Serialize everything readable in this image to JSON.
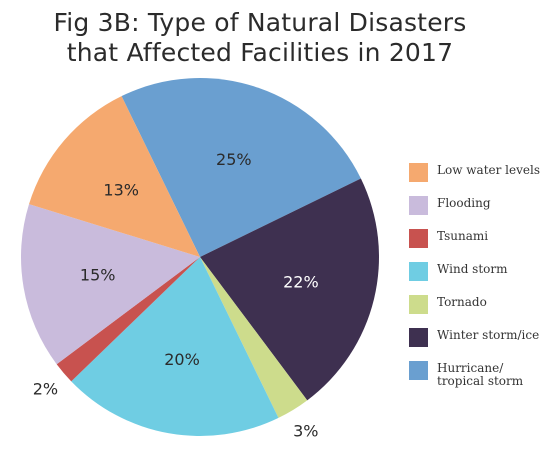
{
  "title_line1": "Fig 3B: Type of Natural Disasters",
  "title_line2": "that Affected Facilities in 2017",
  "chart_data": {
    "type": "pie",
    "title": "Fig 3B: Type of Natural Disasters that Affected Facilities in 2017",
    "start_angle_deg": -116,
    "slices": [
      {
        "label": "Hurricane/ tropical storm",
        "value": 25,
        "display": "25%",
        "color": "#6a9fd0",
        "text_color": "#2b2b2b"
      },
      {
        "label": "Winter storm/ice",
        "value": 22,
        "display": "22%",
        "color": "#3e3050",
        "text_color": "#ffffff"
      },
      {
        "label": "Tornado",
        "value": 3,
        "display": "3%",
        "color": "#cddc8c",
        "text_color": "#2b2b2b"
      },
      {
        "label": "Wind storm",
        "value": 20,
        "display": "20%",
        "color": "#6fcde3",
        "text_color": "#2b2b2b"
      },
      {
        "label": "Tsunami",
        "value": 2,
        "display": "2%",
        "color": "#c8524f",
        "text_color": "#2b2b2b"
      },
      {
        "label": "Flooding",
        "value": 15,
        "display": "15%",
        "color": "#c9bbdc",
        "text_color": "#2b2b2b"
      },
      {
        "label": "Low water levels",
        "value": 13,
        "display": "13%",
        "color": "#f5a96f",
        "text_color": "#2b2b2b"
      }
    ],
    "legend": [
      {
        "label": "Low water levels",
        "color": "#f5a96f"
      },
      {
        "label": "Flooding",
        "color": "#c9bbdc"
      },
      {
        "label": "Tsunami",
        "color": "#c8524f"
      },
      {
        "label": "Wind storm",
        "color": "#6fcde3"
      },
      {
        "label": "Tornado",
        "color": "#cddc8c"
      },
      {
        "label": "Winter storm/ice",
        "color": "#3e3050"
      },
      {
        "label": "Hurricane/ tropical storm",
        "color": "#6a9fd0"
      }
    ],
    "legend_position": "right"
  }
}
